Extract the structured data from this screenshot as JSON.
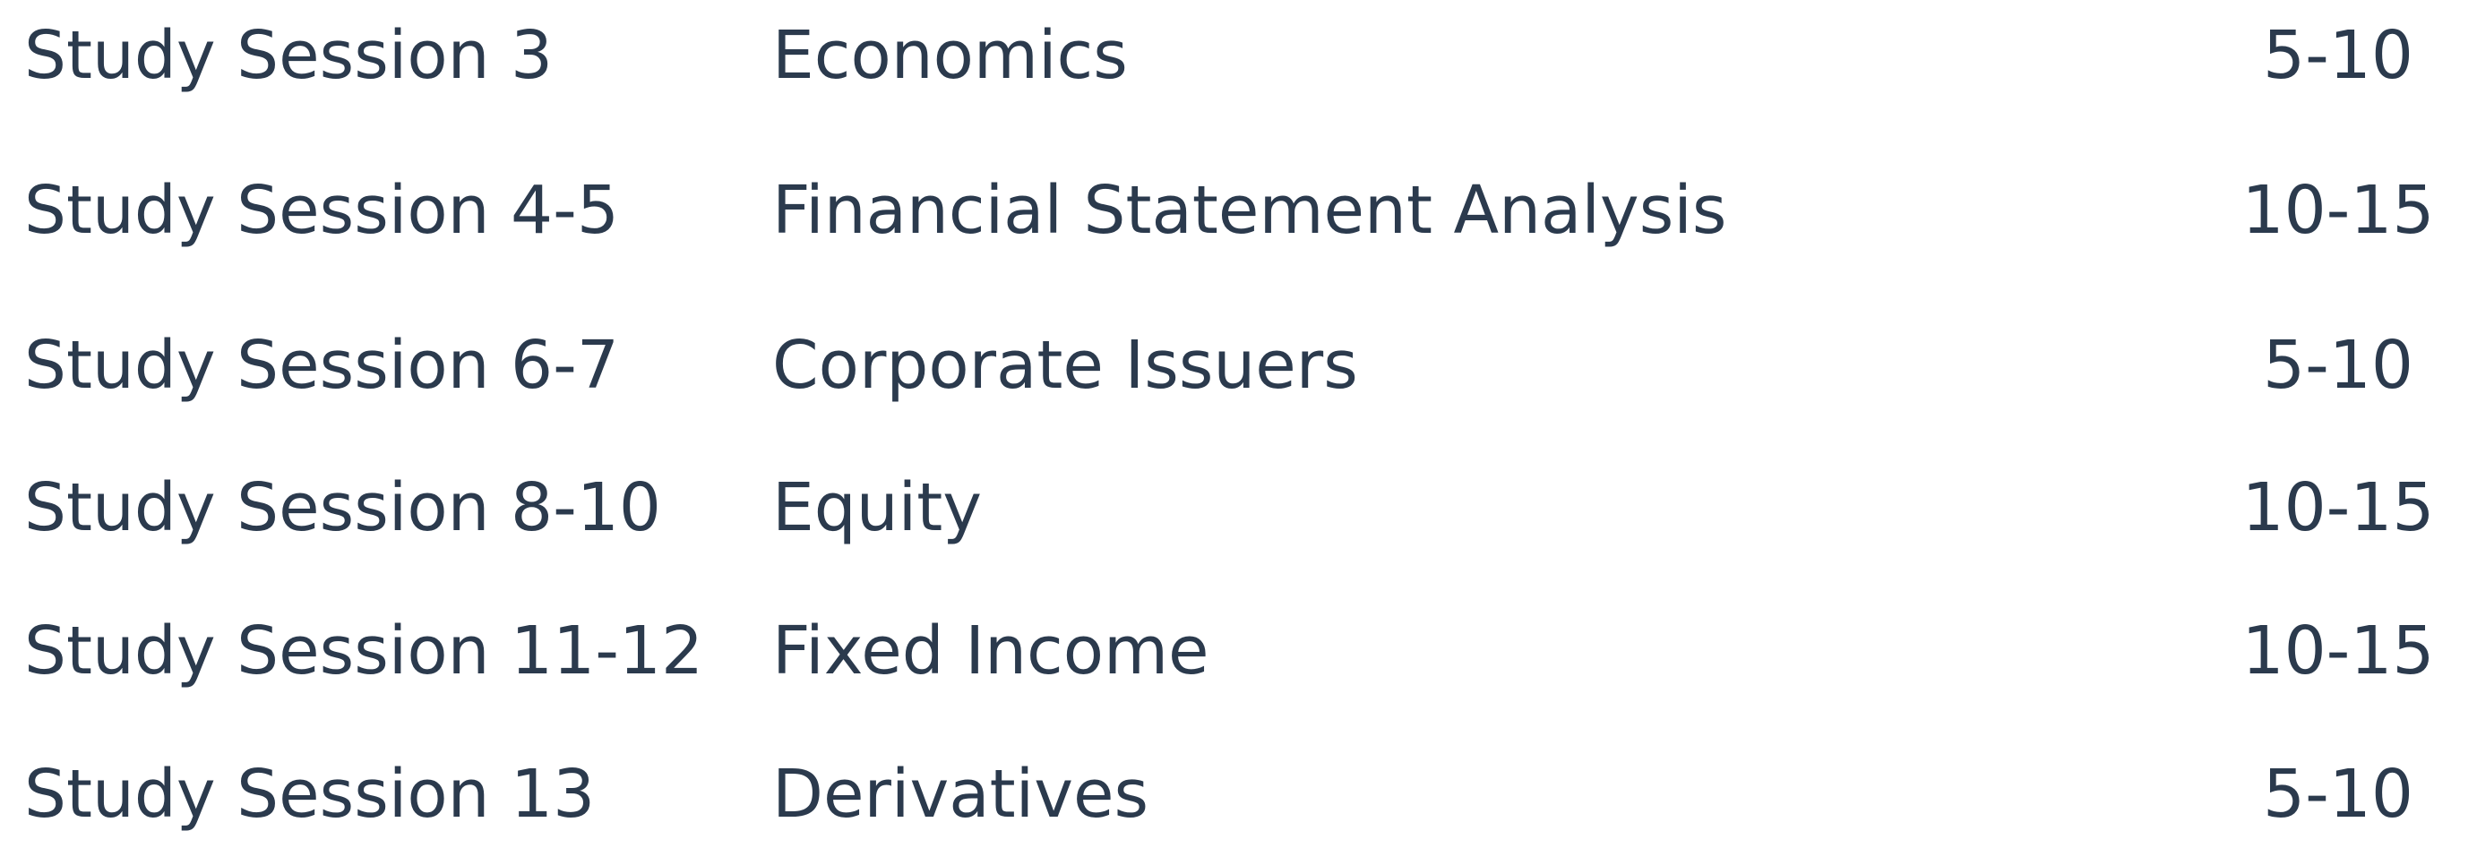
{
  "rows": [
    {
      "session": "Study Session 3",
      "topic": "Economics",
      "weight": "5-10"
    },
    {
      "session": "Study Session 4-5",
      "topic": "Financial Statement Analysis",
      "weight": "10-15"
    },
    {
      "session": "Study Session 6-7",
      "topic": "Corporate Issuers",
      "weight": "5-10"
    },
    {
      "session": "Study Session 8-10",
      "topic": "Equity",
      "weight": "10-15"
    },
    {
      "session": "Study Session 11-12",
      "topic": "Fixed Income",
      "weight": "10-15"
    },
    {
      "session": "Study Session 13",
      "topic": "Derivatives",
      "weight": "5-10"
    }
  ]
}
